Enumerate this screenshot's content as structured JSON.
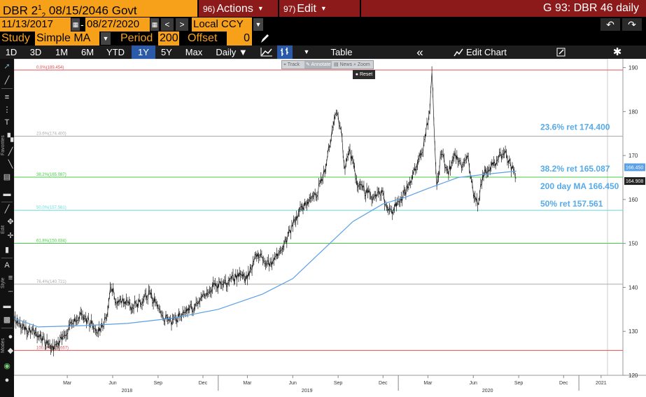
{
  "header": {
    "security_prefix": "DBR 2",
    "security_frac": "1",
    "security_frac2": "2",
    "security_rest": " 08/15/2046 Govt",
    "actions_num": "96)",
    "actions_label": "Actions",
    "edit_num": "97)",
    "edit_label": "Edit",
    "chart_title": "G 93: DBR 46 daily"
  },
  "daterow": {
    "start_date": "11/13/2017",
    "end_date": "08/27/2020",
    "dash": "-",
    "prev_glyph": "<",
    "next_glyph": ">",
    "currency": "Local CCY",
    "undo_glyph": "↶",
    "redo_glyph": "↷"
  },
  "studyrow": {
    "study_label": "Study",
    "study_value": "Simple MA",
    "period_label": "Period",
    "period_value": "200",
    "offset_label": "Offset",
    "offset_value": "0"
  },
  "toolbar": {
    "ranges": [
      "1D",
      "3D",
      "1M",
      "6M",
      "YTD",
      "1Y",
      "5Y",
      "Max"
    ],
    "active_range": "1Y",
    "frequency": "Daily ▼",
    "table_label": "Table",
    "collapse_glyph": "«",
    "edit_chart_label": "Edit Chart",
    "settings_glyph": "✱"
  },
  "chart_tools": {
    "track": "Track",
    "annotate": "Annotate",
    "news": "News",
    "zoom": "Zoom",
    "reset": "Reset"
  },
  "left_toolbar": {
    "favorites": "Favorites",
    "edit": "Edit",
    "style": "Style",
    "modes": "Modes"
  },
  "colors": {
    "price_line": "#1a1a1a",
    "ma_line": "#5aa0e6",
    "fib_red": "#e05050",
    "fib_grey": "#aaaaaa",
    "fib_green": "#44cc44",
    "fib_cyan": "#66dddd",
    "annot_blue": "#55aae8",
    "bbg_orange": "#f7a11a",
    "bbg_red": "#8c1a1a",
    "active_blue": "#2a5aa8"
  },
  "chart_data": {
    "type": "line",
    "ylim": [
      120,
      192
    ],
    "y_ticks": [
      120,
      130,
      140,
      150,
      160,
      170,
      180,
      190
    ],
    "x_start": "2017-11-13",
    "x_end": "2021-02-28",
    "month_ticks": [
      {
        "date": "2018-03-01",
        "label": "Mar"
      },
      {
        "date": "2018-06-01",
        "label": "Jun"
      },
      {
        "date": "2018-09-01",
        "label": "Sep"
      },
      {
        "date": "2018-12-01",
        "label": "Dec"
      },
      {
        "date": "2019-03-01",
        "label": "Mar"
      },
      {
        "date": "2019-06-01",
        "label": "Jun"
      },
      {
        "date": "2019-09-01",
        "label": "Sep"
      },
      {
        "date": "2019-12-01",
        "label": "Dec"
      },
      {
        "date": "2020-03-01",
        "label": "Mar"
      },
      {
        "date": "2020-06-01",
        "label": "Jun"
      },
      {
        "date": "2020-09-01",
        "label": "Sep"
      },
      {
        "date": "2020-12-01",
        "label": "Dec"
      },
      {
        "date": "2021-02-15",
        "label": "2021"
      }
    ],
    "year_ticks": [
      {
        "date": "2018-06-30",
        "label": "2018"
      },
      {
        "date": "2019-06-30",
        "label": "2019"
      },
      {
        "date": "2020-06-30",
        "label": "2020"
      }
    ],
    "year_separators": [
      "2019-01-01",
      "2020-01-01",
      "2021-01-01"
    ],
    "series": [
      {
        "name": "Price",
        "points": [
          [
            "2017-11-13",
            133.0
          ],
          [
            "2017-12-05",
            130.5
          ],
          [
            "2017-12-28",
            129.5
          ],
          [
            "2018-01-15",
            127.5
          ],
          [
            "2018-02-01",
            126.2
          ],
          [
            "2018-02-20",
            128.5
          ],
          [
            "2018-03-10",
            131.5
          ],
          [
            "2018-03-28",
            133.5
          ],
          [
            "2018-04-15",
            132.0
          ],
          [
            "2018-05-01",
            130.0
          ],
          [
            "2018-05-10",
            131.0
          ],
          [
            "2018-05-22",
            134.5
          ],
          [
            "2018-05-29",
            140.5
          ],
          [
            "2018-06-08",
            136.5
          ],
          [
            "2018-06-25",
            137.0
          ],
          [
            "2018-07-10",
            135.5
          ],
          [
            "2018-07-25",
            136.5
          ],
          [
            "2018-08-15",
            138.5
          ],
          [
            "2018-08-30",
            135.5
          ],
          [
            "2018-09-15",
            133.0
          ],
          [
            "2018-09-30",
            132.0
          ],
          [
            "2018-10-15",
            133.5
          ],
          [
            "2018-10-31",
            135.0
          ],
          [
            "2018-11-15",
            135.5
          ],
          [
            "2018-12-01",
            138.5
          ],
          [
            "2018-12-20",
            140.0
          ],
          [
            "2019-01-10",
            140.5
          ],
          [
            "2019-01-31",
            142.0
          ],
          [
            "2019-02-15",
            142.5
          ],
          [
            "2019-03-01",
            142.0
          ],
          [
            "2019-03-20",
            147.5
          ],
          [
            "2019-04-05",
            146.0
          ],
          [
            "2019-04-20",
            145.5
          ],
          [
            "2019-05-05",
            148.5
          ],
          [
            "2019-05-20",
            151.0
          ],
          [
            "2019-06-05",
            155.5
          ],
          [
            "2019-06-20",
            158.0
          ],
          [
            "2019-07-05",
            160.0
          ],
          [
            "2019-07-20",
            161.5
          ],
          [
            "2019-08-05",
            167.0
          ],
          [
            "2019-08-20",
            175.5
          ],
          [
            "2019-08-28",
            179.0
          ],
          [
            "2019-09-05",
            177.5
          ],
          [
            "2019-09-15",
            167.0
          ],
          [
            "2019-09-25",
            171.0
          ],
          [
            "2019-10-10",
            163.5
          ],
          [
            "2019-10-25",
            162.0
          ],
          [
            "2019-11-10",
            160.5
          ],
          [
            "2019-11-25",
            162.0
          ],
          [
            "2019-12-10",
            158.5
          ],
          [
            "2019-12-20",
            157.5
          ],
          [
            "2020-01-05",
            160.0
          ],
          [
            "2020-01-20",
            162.5
          ],
          [
            "2020-02-05",
            167.5
          ],
          [
            "2020-02-18",
            170.5
          ],
          [
            "2020-03-05",
            180.0
          ],
          [
            "2020-03-09",
            189.0
          ],
          [
            "2020-03-13",
            177.5
          ],
          [
            "2020-03-19",
            163.0
          ],
          [
            "2020-03-28",
            171.0
          ],
          [
            "2020-04-10",
            166.0
          ],
          [
            "2020-04-25",
            170.0
          ],
          [
            "2020-05-10",
            167.0
          ],
          [
            "2020-05-20",
            170.0
          ],
          [
            "2020-06-01",
            162.0
          ],
          [
            "2020-06-10",
            158.5
          ],
          [
            "2020-06-20",
            165.5
          ],
          [
            "2020-07-05",
            167.0
          ],
          [
            "2020-07-20",
            169.0
          ],
          [
            "2020-08-05",
            171.0
          ],
          [
            "2020-08-15",
            168.0
          ],
          [
            "2020-08-27",
            164.9
          ]
        ]
      },
      {
        "name": "200 day MA",
        "points": [
          [
            "2017-11-13",
            133.0
          ],
          [
            "2018-01-01",
            131.0
          ],
          [
            "2018-04-01",
            131.3
          ],
          [
            "2018-07-01",
            131.8
          ],
          [
            "2018-10-01",
            133.0
          ],
          [
            "2019-01-01",
            135.0
          ],
          [
            "2019-04-01",
            138.5
          ],
          [
            "2019-06-01",
            142.0
          ],
          [
            "2019-08-01",
            148.5
          ],
          [
            "2019-10-01",
            155.0
          ],
          [
            "2019-12-01",
            159.0
          ],
          [
            "2020-01-15",
            160.5
          ],
          [
            "2020-03-01",
            162.5
          ],
          [
            "2020-05-01",
            165.0
          ],
          [
            "2020-07-01",
            165.8
          ],
          [
            "2020-08-27",
            166.45
          ]
        ]
      }
    ],
    "fib_levels": [
      {
        "label": "0.0%(189.454)",
        "value": 189.454,
        "color": "#e05050"
      },
      {
        "label": "23.6%(174.400)",
        "value": 174.4,
        "color": "#aaaaaa"
      },
      {
        "label": "38.2%(165.087)",
        "value": 165.087,
        "color": "#44cc44"
      },
      {
        "label": "50.0%(157.561)",
        "value": 157.561,
        "color": "#66dddd"
      },
      {
        "label": "61.8%(150.034)",
        "value": 150.034,
        "color": "#44cc44"
      },
      {
        "label": "76.4%(140.721)",
        "value": 140.721,
        "color": "#aaaaaa"
      },
      {
        "label": "100.0%(125.667)",
        "value": 125.667,
        "color": "#e05050"
      }
    ],
    "annotations": [
      {
        "text": "23.6% ret 174.400",
        "value": 176.5
      },
      {
        "text": "38.2% ret 165.087",
        "value": 167.0
      },
      {
        "text": "200 day MA 166.450",
        "value": 163.0
      },
      {
        "text": "50% ret 157.561",
        "value": 159.0
      }
    ],
    "last_labels": [
      {
        "text": "166.450",
        "value": 166.45,
        "color": "#5aa0e6"
      },
      {
        "text": "164.908",
        "value": 164.908,
        "color": "#222222"
      }
    ]
  }
}
